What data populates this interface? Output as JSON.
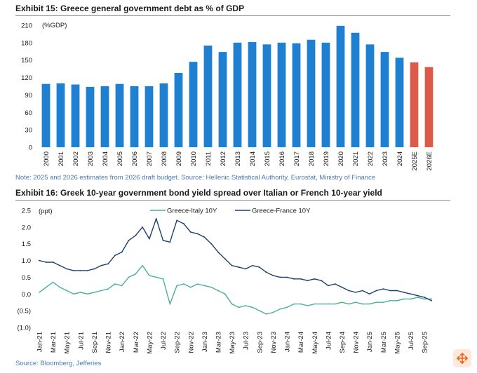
{
  "colors": {
    "bar_actual": "#1f7fd0",
    "bar_estimate": "#dc5a4a",
    "italy_line": "#4aaf9a",
    "france_line": "#1f3f6e",
    "note": "#4a7ab0",
    "badge_icon": "#e8641e"
  },
  "exhibit15": {
    "title": "Exhibit 15: Greece general government debt as % of GDP",
    "note": "Note: 2025 and 2026 estimates from 2026 draft budget. Source: Hellenic Statistical Authority, Eurostat, Ministry of Finance"
  },
  "exhibit16": {
    "title": "Exhibit 16: Greek 10-year government bond yield spread over Italian or French 10-year yield",
    "source": "Source: Bloomberg, Jefferies"
  },
  "chart_data": [
    {
      "type": "bar",
      "ylabel": "(%GDP)",
      "ylim": [
        0,
        210
      ],
      "yticks": [
        "210",
        "180",
        "150",
        "120",
        "90",
        "60",
        "30",
        "0"
      ],
      "categories": [
        "2000",
        "2001",
        "2002",
        "2003",
        "2004",
        "2005",
        "2006",
        "2007",
        "2008",
        "2009",
        "2010",
        "2011",
        "2012",
        "2013",
        "2014",
        "2015",
        "2016",
        "2017",
        "2018",
        "2019",
        "2020",
        "2021",
        "2022",
        "2023",
        "2024",
        "2025E",
        "2026E"
      ],
      "values": [
        109,
        110,
        108,
        104,
        105,
        109,
        105,
        105,
        110,
        128,
        147,
        175,
        164,
        180,
        181,
        177,
        180,
        179,
        185,
        180,
        209,
        197,
        177,
        164,
        154,
        146,
        138
      ],
      "estimate_categories": [
        "2025E",
        "2026E"
      ],
      "grid": false
    },
    {
      "type": "line",
      "ylabel": "(ppt)",
      "ylim": [
        -1.0,
        2.5
      ],
      "yticks": [
        "2.5",
        "2.0",
        "1.5",
        "1.0",
        "0.5",
        "0.0",
        "(0.5)",
        "(1.0)"
      ],
      "ytick_values": [
        2.5,
        2.0,
        1.5,
        1.0,
        0.5,
        0.0,
        -0.5,
        -1.0
      ],
      "x_labels": [
        "Jan-21",
        "Mar-21",
        "May-21",
        "Jul-21",
        "Sep-21",
        "Nov-21",
        "Jan-22",
        "Mar-22",
        "May-22",
        "Jul-22",
        "Sep-22",
        "Nov-22",
        "Jan-23",
        "Mar-23",
        "May-23",
        "Jul-23",
        "Sep-23",
        "Nov-23",
        "Jan-24",
        "Mar-24",
        "May-24",
        "Jul-24",
        "Sep-24",
        "Nov-24",
        "Jan-25",
        "Mar-25",
        "May-25",
        "Jul-25",
        "Sep-25"
      ],
      "legend": "top",
      "grid": false,
      "series": [
        {
          "name": "Greece-Italy 10Y",
          "x": [
            "Jan-21",
            "Feb-21",
            "Mar-21",
            "Apr-21",
            "May-21",
            "Jun-21",
            "Jul-21",
            "Aug-21",
            "Sep-21",
            "Oct-21",
            "Nov-21",
            "Dec-21",
            "Jan-22",
            "Feb-22",
            "Mar-22",
            "Apr-22",
            "May-22",
            "Jun-22",
            "Jul-22",
            "Aug-22",
            "Sep-22",
            "Oct-22",
            "Nov-22",
            "Dec-22",
            "Jan-23",
            "Feb-23",
            "Mar-23",
            "Apr-23",
            "May-23",
            "Jun-23",
            "Jul-23",
            "Aug-23",
            "Sep-23",
            "Oct-23",
            "Nov-23",
            "Dec-23",
            "Jan-24",
            "Feb-24",
            "Mar-24",
            "Apr-24",
            "May-24",
            "Jun-24",
            "Jul-24",
            "Aug-24",
            "Sep-24",
            "Oct-24",
            "Nov-24",
            "Dec-24",
            "Jan-25",
            "Feb-25",
            "Mar-25",
            "Apr-25",
            "May-25",
            "Jun-25",
            "Jul-25",
            "Aug-25",
            "Sep-25",
            "Oct-25"
          ],
          "values": [
            0.05,
            0.2,
            0.35,
            0.2,
            0.1,
            0.0,
            0.05,
            0.0,
            0.05,
            0.1,
            0.15,
            0.3,
            0.25,
            0.5,
            0.6,
            0.85,
            0.55,
            0.5,
            0.45,
            -0.3,
            0.25,
            0.3,
            0.2,
            0.3,
            0.25,
            0.2,
            0.1,
            0.0,
            -0.3,
            -0.4,
            -0.35,
            -0.4,
            -0.5,
            -0.6,
            -0.55,
            -0.45,
            -0.4,
            -0.3,
            -0.3,
            -0.35,
            -0.3,
            -0.3,
            -0.3,
            -0.3,
            -0.25,
            -0.3,
            -0.25,
            -0.3,
            -0.3,
            -0.25,
            -0.25,
            -0.2,
            -0.2,
            -0.15,
            -0.15,
            -0.1,
            -0.15,
            -0.15
          ]
        },
        {
          "name": "Greece-France 10Y",
          "x": [
            "Jan-21",
            "Feb-21",
            "Mar-21",
            "Apr-21",
            "May-21",
            "Jun-21",
            "Jul-21",
            "Aug-21",
            "Sep-21",
            "Oct-21",
            "Nov-21",
            "Dec-21",
            "Jan-22",
            "Feb-22",
            "Mar-22",
            "Apr-22",
            "May-22",
            "Jun-22",
            "Jul-22",
            "Aug-22",
            "Sep-22",
            "Oct-22",
            "Nov-22",
            "Dec-22",
            "Jan-23",
            "Feb-23",
            "Mar-23",
            "Apr-23",
            "May-23",
            "Jun-23",
            "Jul-23",
            "Aug-23",
            "Sep-23",
            "Oct-23",
            "Nov-23",
            "Dec-23",
            "Jan-24",
            "Feb-24",
            "Mar-24",
            "Apr-24",
            "May-24",
            "Jun-24",
            "Jul-24",
            "Aug-24",
            "Sep-24",
            "Oct-24",
            "Nov-24",
            "Dec-24",
            "Jan-25",
            "Feb-25",
            "Mar-25",
            "Apr-25",
            "May-25",
            "Jun-25",
            "Jul-25",
            "Aug-25",
            "Sep-25",
            "Oct-25"
          ],
          "values": [
            1.0,
            0.95,
            0.95,
            0.85,
            0.75,
            0.7,
            0.7,
            0.7,
            0.75,
            0.85,
            0.9,
            1.15,
            1.25,
            1.6,
            1.75,
            2.0,
            1.65,
            2.25,
            1.6,
            1.55,
            2.2,
            2.1,
            1.85,
            1.8,
            1.7,
            1.5,
            1.25,
            1.05,
            0.85,
            0.8,
            0.75,
            0.85,
            0.8,
            0.65,
            0.55,
            0.5,
            0.5,
            0.45,
            0.45,
            0.4,
            0.45,
            0.4,
            0.25,
            0.3,
            0.2,
            0.1,
            0.05,
            0.1,
            0.0,
            0.1,
            0.15,
            0.1,
            0.1,
            0.05,
            0.0,
            -0.05,
            -0.1,
            -0.2
          ]
        }
      ]
    }
  ]
}
